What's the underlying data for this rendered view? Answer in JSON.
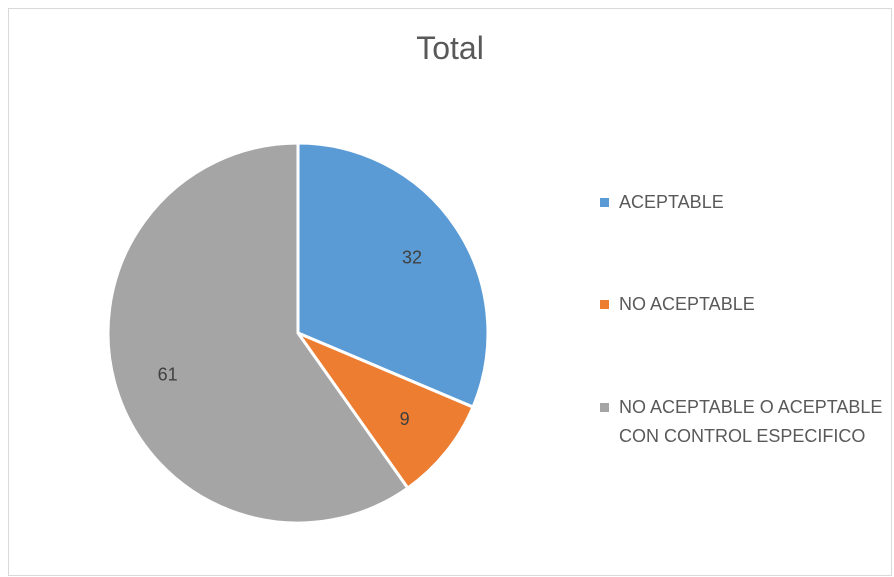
{
  "chart_data": {
    "type": "pie",
    "title": "Total",
    "categories": [
      "ACEPTABLE",
      "NO ACEPTABLE",
      "NO ACEPTABLE O ACEPTABLE CON CONTROL ESPECIFICO"
    ],
    "values": [
      32,
      9,
      61
    ],
    "colors": [
      "#5b9bd5",
      "#ed7d31",
      "#a5a5a5"
    ],
    "legend": "right",
    "data_labels": [
      "32",
      "9",
      "61"
    ]
  },
  "legend": {
    "items": [
      {
        "label": "ACEPTABLE",
        "color": "#5b9bd5"
      },
      {
        "label": "NO ACEPTABLE",
        "color": "#ed7d31"
      },
      {
        "label": "NO ACEPTABLE O ACEPTABLE CON CONTROL ESPECIFICO",
        "color": "#a5a5a5"
      }
    ]
  }
}
